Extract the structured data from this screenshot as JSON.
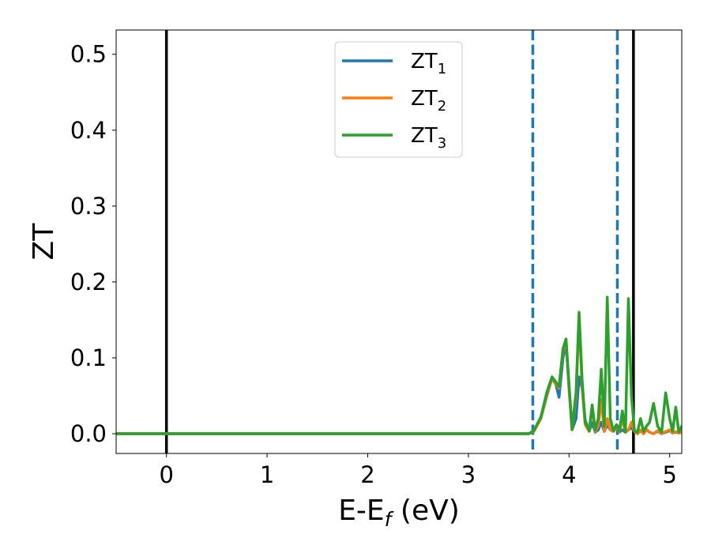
{
  "chart_data": {
    "type": "line",
    "xlabel": {
      "main": "E-E",
      "sub": "f",
      "unit": " (eV)"
    },
    "ylabel": "ZT",
    "xlim": [
      -0.5,
      5.12
    ],
    "ylim": [
      -0.026,
      0.532
    ],
    "xticks": [
      0,
      1,
      2,
      3,
      4,
      5
    ],
    "xtick_labels": [
      "0",
      "1",
      "2",
      "3",
      "4",
      "5"
    ],
    "yticks": [
      0.0,
      0.1,
      0.2,
      0.3,
      0.4,
      0.5
    ],
    "ytick_labels": [
      "0.0",
      "0.1",
      "0.2",
      "0.3",
      "0.4",
      "0.5"
    ],
    "grid": false,
    "legend_position": "top-center",
    "vlines": [
      {
        "x": 0.0,
        "style": "solid",
        "color": "#000000"
      },
      {
        "x": 3.64,
        "style": "dashed",
        "color": "#1f77b4"
      },
      {
        "x": 4.48,
        "style": "dashed",
        "color": "#1f77b4"
      },
      {
        "x": 4.64,
        "style": "solid",
        "color": "#000000"
      }
    ],
    "series": [
      {
        "name": "ZT",
        "sub": "1",
        "color": "#1f77b4",
        "x": [
          -0.5,
          3.6,
          3.65,
          3.72,
          3.78,
          3.83,
          3.87,
          3.9,
          3.94,
          3.97,
          4.0,
          4.03,
          4.07,
          4.1,
          4.13,
          4.16,
          4.2,
          4.23,
          4.26,
          4.29,
          4.32,
          4.35,
          4.38,
          4.41,
          4.44,
          4.47,
          4.5,
          4.53,
          4.56,
          4.59,
          4.62,
          4.65,
          4.68,
          4.71,
          4.74,
          4.77,
          4.8,
          4.84,
          4.88,
          4.92,
          4.96,
          5.0,
          5.03,
          5.06,
          5.09,
          5.12
        ],
        "y": [
          0.0,
          0.0,
          0.003,
          0.02,
          0.05,
          0.073,
          0.065,
          0.048,
          0.1,
          0.12,
          0.06,
          0.005,
          0.02,
          0.075,
          0.06,
          0.018,
          0.003,
          0.015,
          0.002,
          0.005,
          0.015,
          0.003,
          0.012,
          0.005,
          0.003,
          0.008,
          0.002,
          0.005,
          0.002,
          0.005,
          0.008,
          0.003,
          0.0,
          0.004,
          0.0,
          0.005,
          0.002,
          0.0,
          0.003,
          0.0,
          0.002,
          0.004,
          0.001,
          0.002,
          0.001,
          0.002
        ]
      },
      {
        "name": "ZT",
        "sub": "2",
        "color": "#ff7f0e",
        "x": [
          -0.5,
          3.6,
          3.65,
          3.72,
          3.78,
          3.83,
          3.87,
          3.9,
          3.94,
          3.97,
          4.0,
          4.03,
          4.07,
          4.1,
          4.13,
          4.16,
          4.2,
          4.23,
          4.26,
          4.29,
          4.32,
          4.35,
          4.38,
          4.41,
          4.44,
          4.47,
          4.5,
          4.53,
          4.56,
          4.59,
          4.62,
          4.65,
          4.68,
          4.71,
          4.74,
          4.77,
          4.8,
          4.84,
          4.88,
          4.92,
          4.96,
          5.0,
          5.03,
          5.06,
          5.09,
          5.12
        ],
        "y": [
          0.0,
          0.0,
          0.003,
          0.02,
          0.052,
          0.073,
          0.066,
          0.06,
          0.11,
          0.122,
          0.06,
          0.005,
          0.05,
          0.155,
          0.06,
          0.012,
          0.003,
          0.035,
          0.003,
          0.01,
          0.045,
          0.003,
          0.02,
          0.005,
          0.003,
          0.01,
          0.002,
          0.02,
          0.002,
          0.005,
          0.015,
          0.003,
          0.0,
          0.005,
          0.0,
          0.006,
          0.002,
          0.0,
          0.004,
          0.0,
          0.003,
          0.005,
          0.001,
          0.003,
          0.001,
          0.002
        ]
      },
      {
        "name": "ZT",
        "sub": "3",
        "color": "#2ca02c",
        "x": [
          -0.5,
          3.6,
          3.65,
          3.72,
          3.78,
          3.83,
          3.87,
          3.9,
          3.94,
          3.97,
          4.0,
          4.03,
          4.07,
          4.1,
          4.13,
          4.16,
          4.2,
          4.23,
          4.26,
          4.29,
          4.32,
          4.35,
          4.38,
          4.41,
          4.44,
          4.47,
          4.5,
          4.53,
          4.56,
          4.59,
          4.62,
          4.65,
          4.68,
          4.71,
          4.74,
          4.77,
          4.8,
          4.84,
          4.88,
          4.92,
          4.96,
          5.0,
          5.03,
          5.06,
          5.09,
          5.12
        ],
        "y": [
          0.0,
          0.0,
          0.004,
          0.022,
          0.055,
          0.075,
          0.068,
          0.062,
          0.112,
          0.125,
          0.065,
          0.006,
          0.055,
          0.16,
          0.07,
          0.015,
          0.004,
          0.038,
          0.005,
          0.02,
          0.085,
          0.01,
          0.18,
          0.02,
          0.004,
          0.012,
          0.003,
          0.03,
          0.002,
          0.178,
          0.05,
          0.004,
          0.002,
          0.02,
          0.003,
          0.01,
          0.015,
          0.04,
          0.01,
          0.002,
          0.054,
          0.02,
          0.003,
          0.035,
          0.002,
          0.01
        ]
      }
    ]
  }
}
